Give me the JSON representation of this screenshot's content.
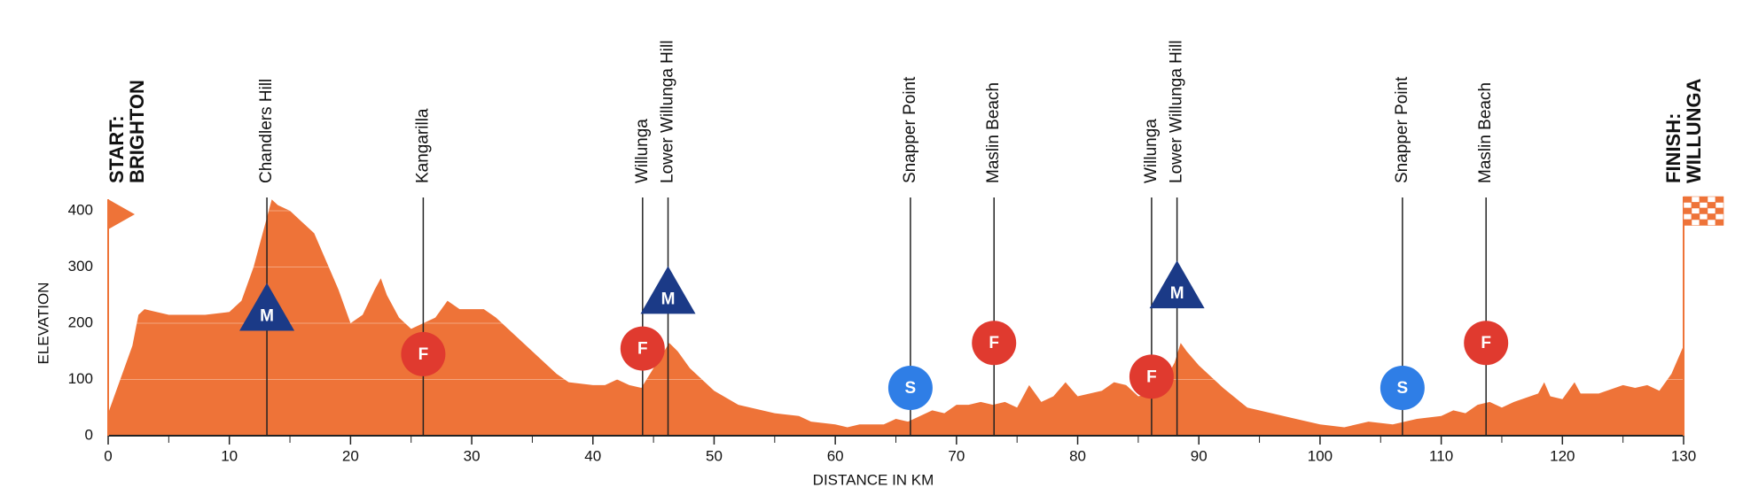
{
  "chart_data": {
    "type": "area",
    "x_label": "DISTANCE IN KM",
    "y_label": "ELEVATION",
    "x": [
      0,
      1,
      2,
      2.5,
      3,
      5,
      8,
      10,
      11,
      12,
      13,
      13.5,
      14,
      15,
      16,
      17,
      18,
      19,
      20,
      21,
      22,
      22.5,
      23,
      24,
      25,
      26,
      27,
      28,
      29,
      31,
      32,
      33,
      35,
      37,
      38,
      40,
      41,
      42,
      43,
      44,
      45,
      46.3,
      47,
      48,
      50,
      52,
      55,
      57,
      58,
      60,
      61,
      62,
      64,
      65,
      66,
      67,
      68,
      69,
      70,
      71,
      72,
      73,
      74,
      75,
      76,
      77,
      78,
      79,
      80,
      82,
      83,
      84,
      85,
      86,
      87,
      88,
      88.5,
      89,
      90,
      92,
      94,
      96,
      98,
      100,
      102,
      104,
      106,
      108,
      110,
      111,
      112,
      113,
      114,
      115,
      116,
      118,
      118.5,
      119,
      120,
      121,
      121.5,
      123,
      125,
      126,
      127,
      128,
      129,
      130
    ],
    "values": [
      40,
      100,
      160,
      215,
      225,
      215,
      215,
      220,
      240,
      300,
      380,
      420,
      410,
      400,
      380,
      360,
      310,
      260,
      200,
      215,
      260,
      280,
      250,
      210,
      190,
      200,
      210,
      240,
      225,
      225,
      210,
      190,
      150,
      110,
      95,
      90,
      90,
      100,
      90,
      85,
      120,
      165,
      150,
      120,
      80,
      55,
      40,
      35,
      25,
      20,
      15,
      20,
      20,
      30,
      25,
      35,
      45,
      40,
      55,
      55,
      60,
      55,
      60,
      50,
      90,
      60,
      70,
      95,
      70,
      80,
      95,
      90,
      70,
      75,
      90,
      130,
      165,
      150,
      125,
      85,
      50,
      40,
      30,
      20,
      15,
      25,
      20,
      30,
      35,
      45,
      40,
      55,
      60,
      50,
      60,
      75,
      95,
      70,
      65,
      95,
      75,
      75,
      90,
      85,
      90,
      80,
      110,
      160
    ],
    "color": "#ee7338",
    "xlim": [
      0,
      130
    ],
    "ylim": [
      0,
      400
    ],
    "xticks": [
      0,
      10,
      20,
      30,
      40,
      50,
      60,
      70,
      80,
      90,
      100,
      110,
      120,
      130
    ],
    "yticks": [
      0,
      100,
      200,
      300,
      400
    ],
    "grid": true,
    "start": [
      "START:",
      "BRIGHTON"
    ],
    "finish": [
      "FINISH:",
      "WILLUNGA"
    ],
    "markers": [
      {
        "x": 13.1,
        "label": "Chandlers Hill",
        "icon": "M"
      },
      {
        "x": 26.0,
        "label": "Kangarilla",
        "icon": "F"
      },
      {
        "x": 44.1,
        "label": "Willunga",
        "icon": "F"
      },
      {
        "x": 46.2,
        "label": "Lower Willunga Hill",
        "icon": "M"
      },
      {
        "x": 66.2,
        "label": "Snapper Point",
        "icon": "S"
      },
      {
        "x": 73.1,
        "label": "Maslin Beach",
        "icon": "F"
      },
      {
        "x": 86.1,
        "label": "Willunga",
        "icon": "F"
      },
      {
        "x": 88.2,
        "label": "Lower Willunga Hill",
        "icon": "M"
      },
      {
        "x": 106.8,
        "label": "Snapper Point",
        "icon": "S"
      },
      {
        "x": 113.7,
        "label": "Maslin Beach",
        "icon": "F"
      }
    ]
  }
}
